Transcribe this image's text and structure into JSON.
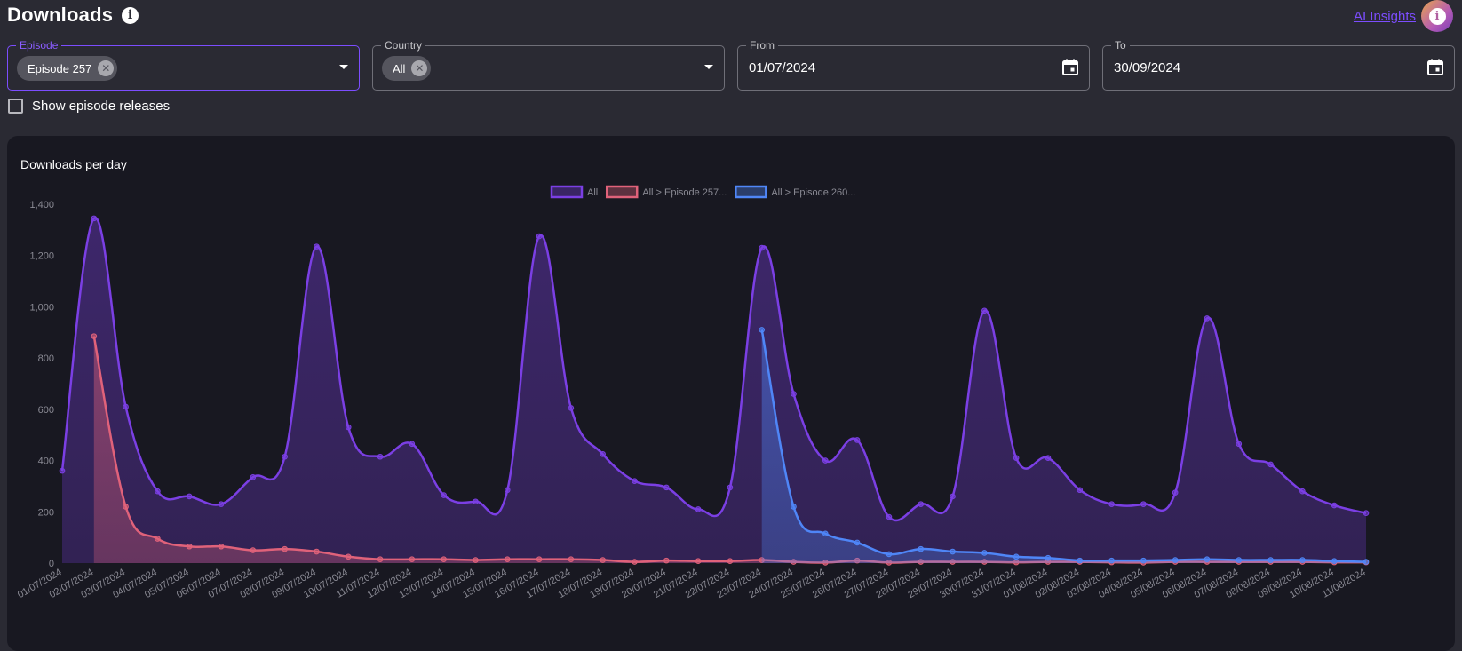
{
  "header": {
    "title": "Downloads",
    "info_icon": "info-icon",
    "ai_insights_label": "AI Insights",
    "avatar_icon": "info-icon"
  },
  "filters": {
    "episode": {
      "label": "Episode",
      "chip": "Episode 257"
    },
    "country": {
      "label": "Country",
      "chip": "All"
    },
    "from": {
      "label": "From",
      "value": "01/07/2024"
    },
    "to": {
      "label": "To",
      "value": "30/09/2024"
    },
    "show_releases_label": "Show episode releases"
  },
  "chart": {
    "title": "Downloads per day"
  },
  "colors": {
    "accent": "#7c4dff",
    "all": "#7b3fe4",
    "ep257": "#e0627a",
    "ep260": "#4f86f7"
  },
  "chart_data": {
    "type": "area",
    "ylim": [
      0,
      1400
    ],
    "yticks": [
      "0",
      "200",
      "400",
      "600",
      "800",
      "1,000",
      "1,200",
      "1,400"
    ],
    "grid": false,
    "legend_position": "top-center",
    "categories": [
      "01/07/2024",
      "02/07/2024",
      "03/07/2024",
      "04/07/2024",
      "05/07/2024",
      "06/07/2024",
      "07/07/2024",
      "08/07/2024",
      "09/07/2024",
      "10/07/2024",
      "11/07/2024",
      "12/07/2024",
      "13/07/2024",
      "14/07/2024",
      "15/07/2024",
      "16/07/2024",
      "17/07/2024",
      "18/07/2024",
      "19/07/2024",
      "20/07/2024",
      "21/07/2024",
      "22/07/2024",
      "23/07/2024",
      "24/07/2024",
      "25/07/2024",
      "26/07/2024",
      "27/07/2024",
      "28/07/2024",
      "29/07/2024",
      "30/07/2024",
      "31/07/2024",
      "01/08/2024",
      "02/08/2024",
      "03/08/2024",
      "04/08/2024",
      "05/08/2024",
      "06/08/2024",
      "07/08/2024",
      "08/08/2024",
      "09/08/2024",
      "10/08/2024",
      "11/08/2024"
    ],
    "series": [
      {
        "name": "All",
        "values": [
          360,
          1345,
          610,
          280,
          260,
          230,
          335,
          415,
          1235,
          530,
          415,
          465,
          265,
          240,
          285,
          1275,
          605,
          425,
          320,
          295,
          210,
          295,
          1230,
          660,
          400,
          480,
          180,
          230,
          260,
          985,
          410,
          410,
          285,
          230,
          230,
          275,
          955,
          465,
          385,
          280,
          225,
          195
        ]
      },
      {
        "name": "All > Episode 257...",
        "values": [
          null,
          885,
          220,
          95,
          65,
          65,
          50,
          55,
          45,
          25,
          15,
          15,
          15,
          12,
          15,
          15,
          15,
          12,
          5,
          10,
          8,
          8,
          12,
          5,
          2,
          10,
          2,
          5,
          5,
          5,
          3,
          5,
          5,
          3,
          2,
          5,
          5,
          5,
          5,
          5,
          3,
          3
        ]
      },
      {
        "name": "All > Episode 260...",
        "values": [
          null,
          null,
          null,
          null,
          null,
          null,
          null,
          null,
          null,
          null,
          null,
          null,
          null,
          null,
          null,
          null,
          null,
          null,
          null,
          null,
          null,
          null,
          910,
          220,
          115,
          80,
          35,
          55,
          45,
          40,
          25,
          20,
          10,
          10,
          10,
          12,
          15,
          12,
          12,
          12,
          8,
          5
        ]
      }
    ]
  }
}
